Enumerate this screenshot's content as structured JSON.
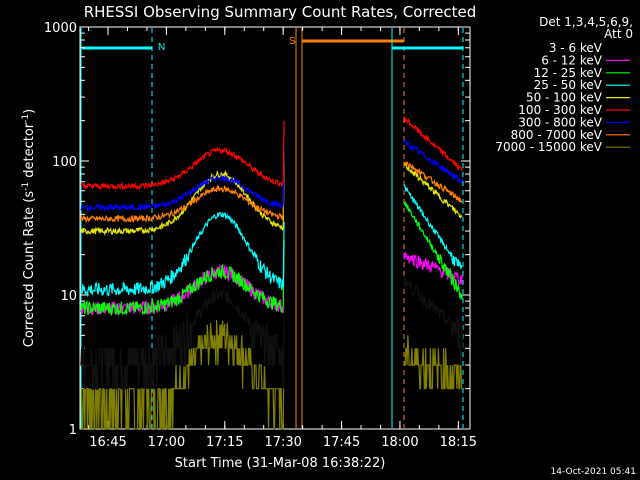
{
  "chart_data": {
    "type": "line",
    "title": "RHESSI Observing Summary Count Rates, Corrected",
    "xlabel": "Start Time (31-Mar-08 16:38:22)",
    "ylabel_main": "Corrected Count Rate (s",
    "ylabel_sup1": "-1",
    "ylabel_mid": " detector",
    "ylabel_sup2": "-1",
    "ylabel_end": ")",
    "yscale": "log",
    "ylim": [
      1,
      1000
    ],
    "xlim_minutes": [
      16.63,
      18.3
    ],
    "x_ticks": [
      "16:45",
      "17:00",
      "17:15",
      "17:30",
      "17:45",
      "18:00",
      "18:15"
    ],
    "y_ticks": [
      "1",
      "10",
      "100",
      "1000"
    ],
    "legend_header_1": "Det 1,3,4,5,6,9,",
    "legend_header_2": "Att 0",
    "timestamp": "14-Oct-2021 05:41",
    "markers": {
      "night_label": "N",
      "saa_label": "S",
      "night_1_color": "#00ffff",
      "saa_color": "#ff8000"
    },
    "series": [
      {
        "name": "3 - 6 keV",
        "color": "#000000"
      },
      {
        "name": "6 - 12 keV",
        "color": "#ff00ff"
      },
      {
        "name": "12 - 25 keV",
        "color": "#00ff00"
      },
      {
        "name": "25 - 50 keV",
        "color": "#00ffff"
      },
      {
        "name": "50 - 100 keV",
        "color": "#e6e600"
      },
      {
        "name": "100 - 300 keV",
        "color": "#ff0000"
      },
      {
        "name": "300 - 800 keV",
        "color": "#0000ff"
      },
      {
        "name": "800 - 7000 keV",
        "color": "#ff8000"
      },
      {
        "name": "7000 - 15000 keV",
        "color": "#808000"
      }
    ],
    "segments": [
      {
        "x_start": "16:38",
        "x_end": "17:30",
        "peak_time": "17:14",
        "levels": {
          "3 - 6 keV": [
            3.3,
            10
          ],
          "6 - 12 keV": [
            8,
            15
          ],
          "12 - 25 keV": [
            8,
            15
          ],
          "25 - 50 keV": [
            11,
            40
          ],
          "50 - 100 keV": [
            30,
            80
          ],
          "100 - 300 keV": [
            65,
            120
          ],
          "300 - 800 keV": [
            45,
            75
          ],
          "800 - 7000 keV": [
            37,
            62
          ],
          "7000 - 15000 keV": [
            1.6,
            5
          ]
        }
      },
      {
        "x_start": "18:01",
        "x_end": "18:16",
        "levels": {
          "3 - 6 keV": [
            13,
            5
          ],
          "6 - 12 keV": [
            20,
            13
          ],
          "12 - 25 keV": [
            50,
            10
          ],
          "25 - 50 keV": [
            65,
            15
          ],
          "50 - 100 keV": [
            95,
            38
          ],
          "100 - 300 keV": [
            210,
            85
          ],
          "300 - 800 keV": [
            140,
            70
          ],
          "800 - 7000 keV": [
            100,
            50
          ],
          "7000 - 15000 keV": [
            3.5,
            2.5
          ]
        }
      }
    ]
  }
}
